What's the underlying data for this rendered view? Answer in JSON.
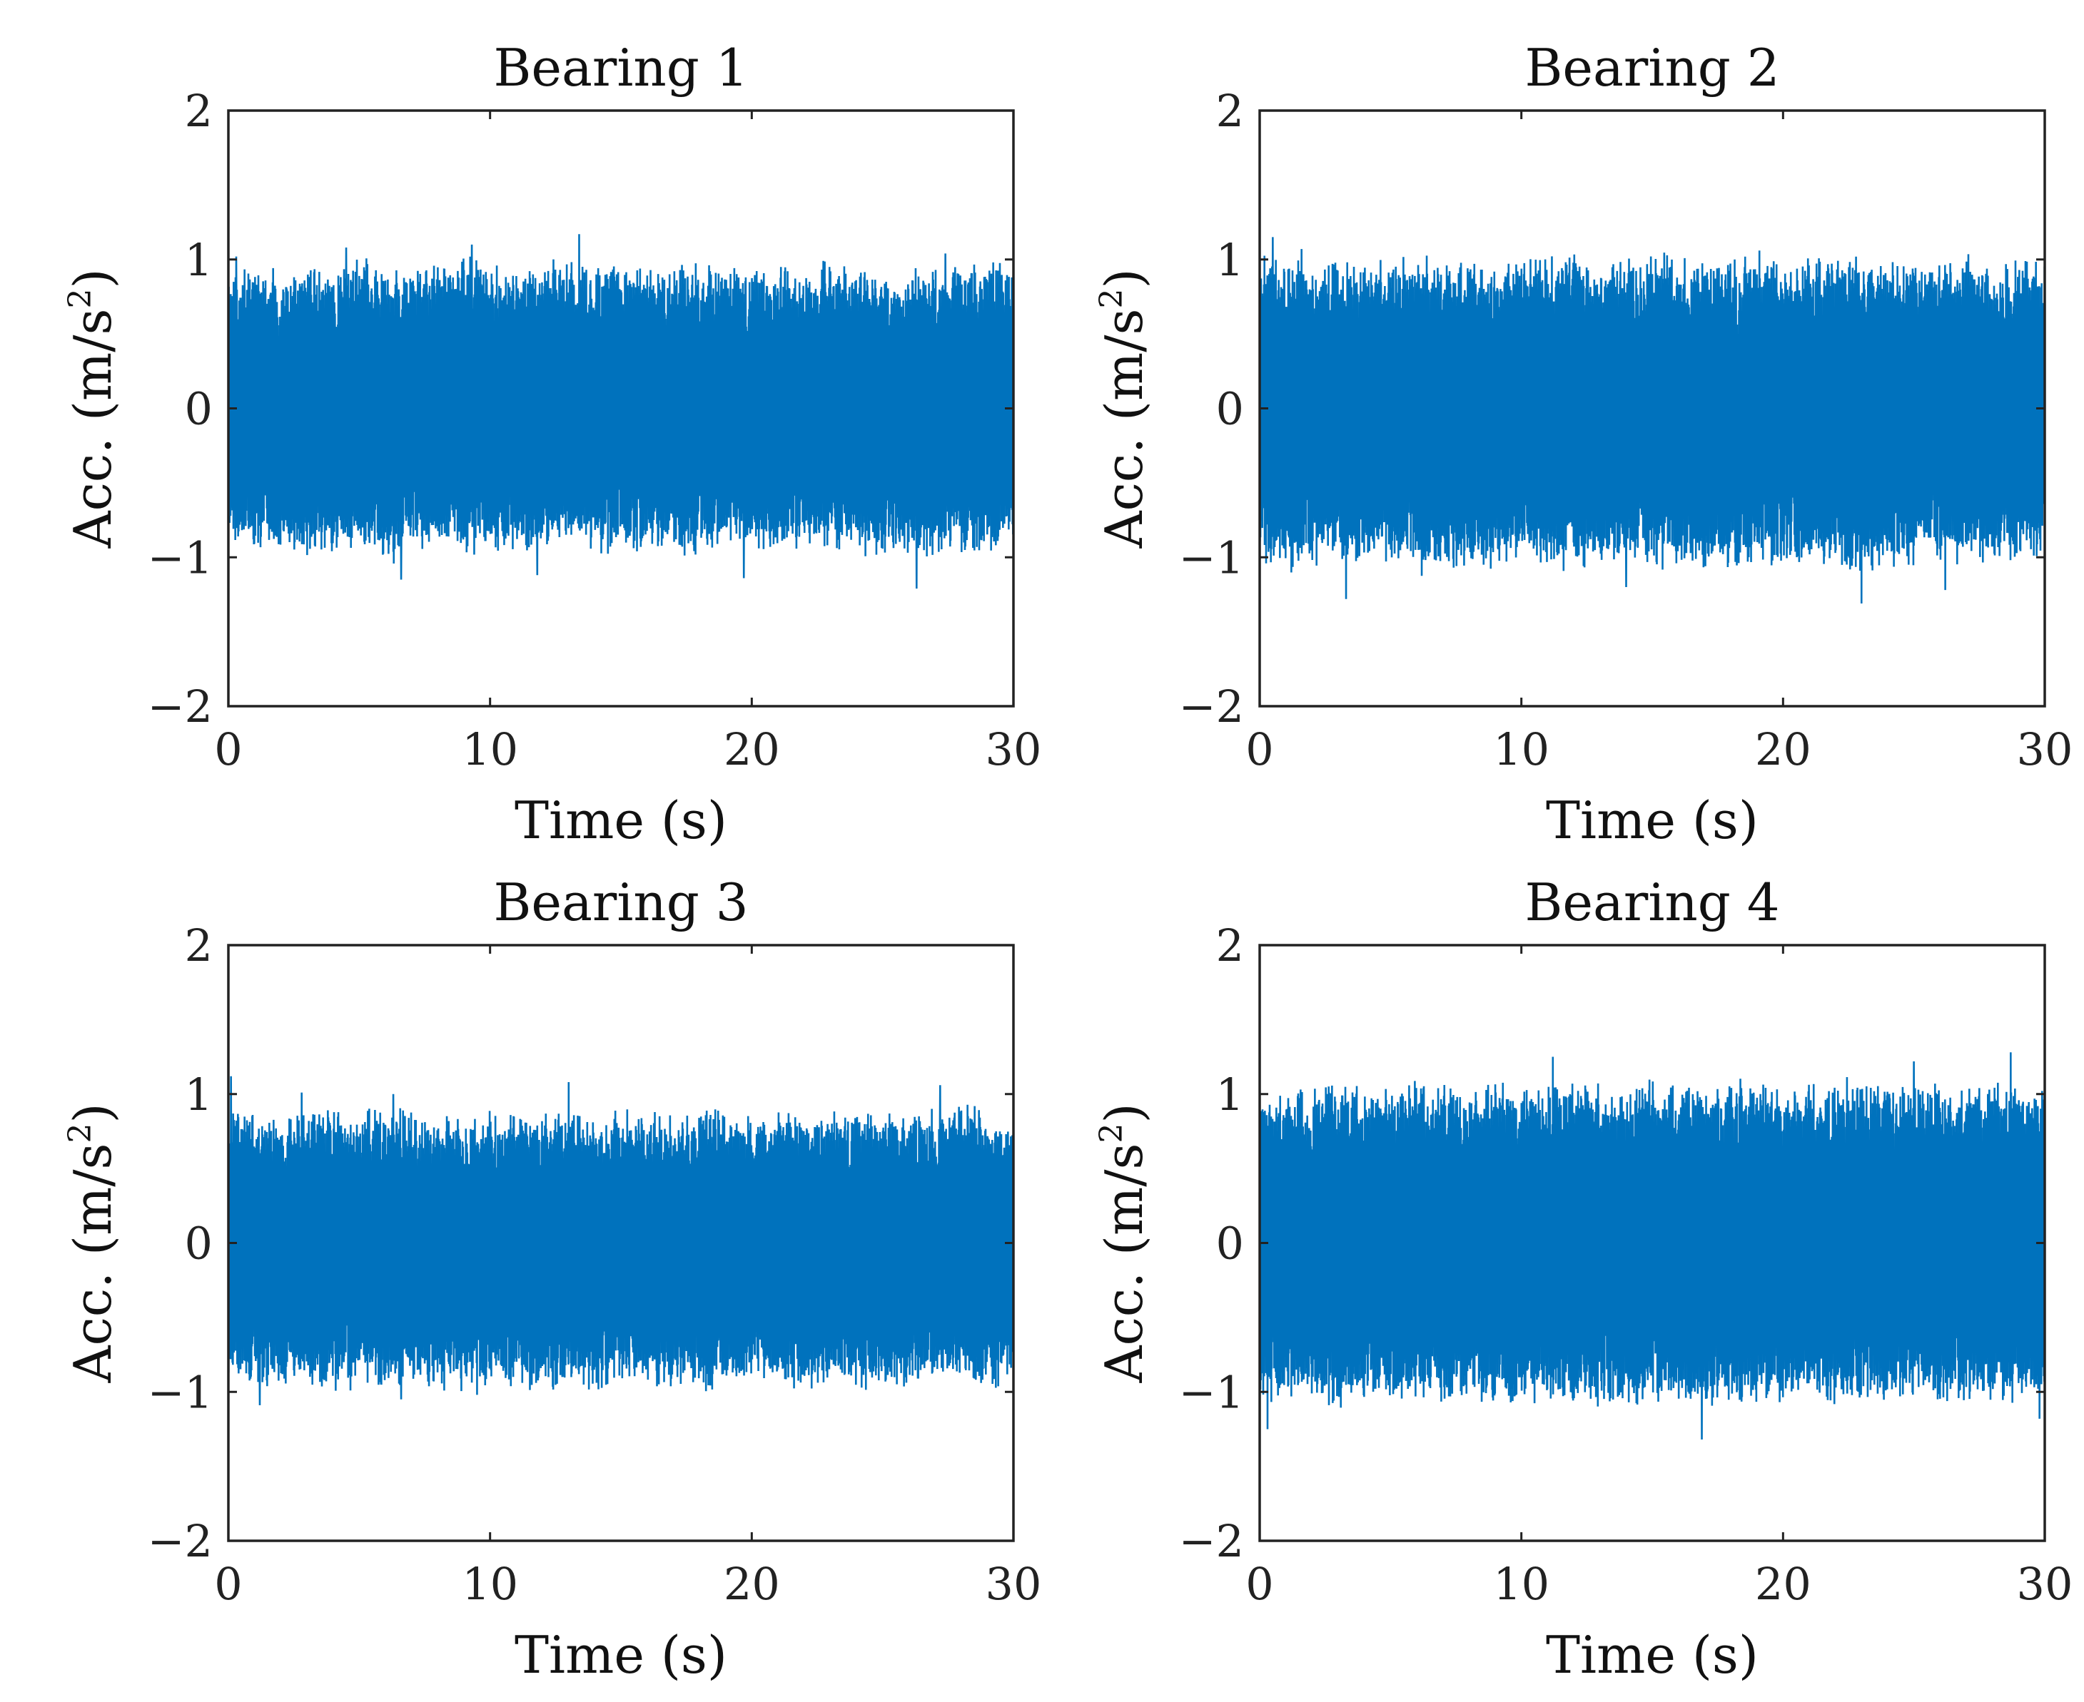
{
  "figure": {
    "series_color": "#0072BD",
    "axis_color": "#222222"
  },
  "chart_data": [
    {
      "type": "line",
      "title": "Bearing 1",
      "xlabel": "Time (s)",
      "ylabel": {
        "main": "Acc. (m/s",
        "sup": "2",
        "close": ")"
      },
      "xlim": [
        0,
        30
      ],
      "ylim": [
        -2,
        2
      ],
      "xticks": [
        0,
        10,
        20,
        30
      ],
      "yticks": [
        -2,
        -1,
        0,
        1,
        2
      ],
      "xtick_labels": [
        "0",
        "10",
        "20",
        "30"
      ],
      "ytick_labels": [
        "−2",
        "−1",
        "0",
        "1",
        "2"
      ],
      "series": [
        {
          "name": "acceleration",
          "duration": 30,
          "peak_envelope": [
            0.82,
            0.88,
            0.85,
            0.92,
            0.86,
            0.95,
            0.84,
            0.9,
            0.88,
            0.94,
            0.87,
            0.85,
            0.91,
            0.89,
            0.86,
            0.93,
            0.85,
            0.88,
            0.9,
            0.87,
            0.86,
            0.84,
            0.89,
            0.87,
            0.88,
            0.85,
            0.86,
            0.9,
            0.89,
            0.91
          ],
          "trough_envelope": [
            -0.85,
            -0.88,
            -0.9,
            -0.92,
            -0.87,
            -0.89,
            -0.95,
            -0.86,
            -0.88,
            -0.9,
            -0.87,
            -0.94,
            -0.86,
            -0.88,
            -0.91,
            -0.89,
            -0.87,
            -0.92,
            -0.88,
            -0.86,
            -0.9,
            -0.87,
            -0.89,
            -0.86,
            -0.93,
            -0.88,
            -0.91,
            -0.87,
            -0.89,
            -0.85
          ],
          "spikes": [
            {
              "t": 4.5,
              "value": 1.08
            },
            {
              "t": 9.3,
              "value": 1.1
            },
            {
              "t": 13.4,
              "value": 1.17
            },
            {
              "t": 27.4,
              "value": 1.04
            },
            {
              "t": 0.3,
              "value": 1.02
            },
            {
              "t": 6.6,
              "value": -1.15
            },
            {
              "t": 11.8,
              "value": -1.12
            },
            {
              "t": 19.7,
              "value": -1.14
            },
            {
              "t": 26.3,
              "value": -1.21
            }
          ]
        }
      ]
    },
    {
      "type": "line",
      "title": "Bearing 2",
      "xlabel": "Time (s)",
      "ylabel": {
        "main": "Acc. (m/s",
        "sup": "2",
        "close": ")"
      },
      "xlim": [
        0,
        30
      ],
      "ylim": [
        -2,
        2
      ],
      "xticks": [
        0,
        10,
        20,
        30
      ],
      "yticks": [
        -2,
        -1,
        0,
        1,
        2
      ],
      "xtick_labels": [
        "0",
        "10",
        "20",
        "30"
      ],
      "ytick_labels": [
        "−2",
        "−1",
        "0",
        "1",
        "2"
      ],
      "series": [
        {
          "name": "acceleration",
          "duration": 30,
          "peak_envelope": [
            0.95,
            0.92,
            0.9,
            0.93,
            0.88,
            0.91,
            0.94,
            0.89,
            0.92,
            0.9,
            0.93,
            0.91,
            0.95,
            0.9,
            0.92,
            0.96,
            0.91,
            0.93,
            0.94,
            0.9,
            0.92,
            0.95,
            0.93,
            0.91,
            0.89,
            0.9,
            0.94,
            0.88,
            0.9,
            0.92
          ],
          "trough_envelope": [
            -0.95,
            -1.0,
            -0.98,
            -1.02,
            -0.96,
            -0.99,
            -1.03,
            -0.97,
            -1.0,
            -0.98,
            -0.96,
            -1.01,
            -0.99,
            -0.97,
            -1.0,
            -0.98,
            -1.02,
            -0.96,
            -0.99,
            -0.97,
            -1.0,
            -0.98,
            -1.05,
            -0.97,
            -1.0,
            -0.98,
            -0.96,
            -0.99,
            -0.97,
            -0.95
          ],
          "spikes": [
            {
              "t": 0.5,
              "value": 1.15
            },
            {
              "t": 1.6,
              "value": 1.07
            },
            {
              "t": 19.1,
              "value": 1.06
            },
            {
              "t": 3.3,
              "value": -1.28
            },
            {
              "t": 23.0,
              "value": -1.31
            },
            {
              "t": 26.2,
              "value": -1.22
            },
            {
              "t": 14.0,
              "value": -1.2
            }
          ]
        }
      ]
    },
    {
      "type": "line",
      "title": "Bearing 3",
      "xlabel": "Time (s)",
      "ylabel": {
        "main": "Acc. (m/s",
        "sup": "2",
        "close": ")"
      },
      "xlim": [
        0,
        30
      ],
      "ylim": [
        -2,
        2
      ],
      "xticks": [
        0,
        10,
        20,
        30
      ],
      "yticks": [
        -2,
        -1,
        0,
        1,
        2
      ],
      "xtick_labels": [
        "0",
        "10",
        "20",
        "30"
      ],
      "ytick_labels": [
        "−2",
        "−1",
        "0",
        "1",
        "2"
      ],
      "series": [
        {
          "name": "acceleration",
          "duration": 30,
          "peak_envelope": [
            0.78,
            0.8,
            0.76,
            0.82,
            0.79,
            0.81,
            0.84,
            0.78,
            0.8,
            0.77,
            0.83,
            0.79,
            0.81,
            0.78,
            0.8,
            0.82,
            0.79,
            0.77,
            0.81,
            0.8,
            0.78,
            0.83,
            0.79,
            0.81,
            0.8,
            0.78,
            0.82,
            0.85,
            0.8,
            0.79
          ],
          "trough_envelope": [
            -0.88,
            -0.92,
            -0.9,
            -0.87,
            -0.91,
            -0.89,
            -0.93,
            -0.88,
            -0.9,
            -0.92,
            -0.87,
            -0.91,
            -0.89,
            -0.88,
            -0.9,
            -0.86,
            -0.91,
            -0.89,
            -0.92,
            -0.88,
            -0.87,
            -0.9,
            -0.89,
            -0.91,
            -0.88,
            -0.92,
            -0.89,
            -0.87,
            -0.9,
            -0.88
          ],
          "spikes": [
            {
              "t": 0.1,
              "value": 1.12
            },
            {
              "t": 2.8,
              "value": 1.01
            },
            {
              "t": 6.3,
              "value": 1.0
            },
            {
              "t": 13.0,
              "value": 1.08
            },
            {
              "t": 27.2,
              "value": 1.06
            },
            {
              "t": 6.6,
              "value": -1.05
            },
            {
              "t": 9.5,
              "value": -1.02
            },
            {
              "t": 1.2,
              "value": -1.09
            }
          ]
        }
      ]
    },
    {
      "type": "line",
      "title": "Bearing 4",
      "xlabel": "Time (s)",
      "ylabel": {
        "main": "Acc. (m/s",
        "sup": "2",
        "close": ")"
      },
      "xlim": [
        0,
        30
      ],
      "ylim": [
        -2,
        2
      ],
      "xticks": [
        0,
        10,
        20,
        30
      ],
      "yticks": [
        -2,
        -1,
        0,
        1,
        2
      ],
      "xtick_labels": [
        "0",
        "10",
        "20",
        "30"
      ],
      "ytick_labels": [
        "−2",
        "−1",
        "0",
        "1",
        "2"
      ],
      "series": [
        {
          "name": "acceleration",
          "duration": 30,
          "peak_envelope": [
            0.96,
            0.98,
            0.95,
            1.0,
            0.97,
            0.99,
            1.02,
            0.96,
            0.98,
            1.01,
            0.97,
            1.0,
            1.03,
            0.98,
            0.99,
            1.01,
            0.97,
            1.0,
            1.02,
            0.98,
            0.99,
            1.0,
            1.02,
            0.97,
            0.99,
            1.01,
            1.03,
            1.0,
            1.02,
            0.99
          ],
          "trough_envelope": [
            -1.0,
            -0.97,
            -0.99,
            -1.02,
            -0.98,
            -1.0,
            -0.97,
            -1.01,
            -0.99,
            -1.02,
            -0.98,
            -1.0,
            -1.03,
            -0.99,
            -1.01,
            -0.98,
            -1.04,
            -1.0,
            -0.99,
            -1.02,
            -0.98,
            -1.01,
            -0.99,
            -1.0,
            -0.98,
            -1.02,
            -0.99,
            -1.01,
            -0.98,
            -1.0
          ],
          "spikes": [
            {
              "t": 0.0,
              "value": 1.18
            },
            {
              "t": 11.2,
              "value": 1.25
            },
            {
              "t": 25.0,
              "value": 1.22
            },
            {
              "t": 28.7,
              "value": 1.28
            },
            {
              "t": 0.3,
              "value": -1.25
            },
            {
              "t": 16.9,
              "value": -1.32
            },
            {
              "t": 29.8,
              "value": -1.18
            }
          ]
        }
      ]
    }
  ]
}
